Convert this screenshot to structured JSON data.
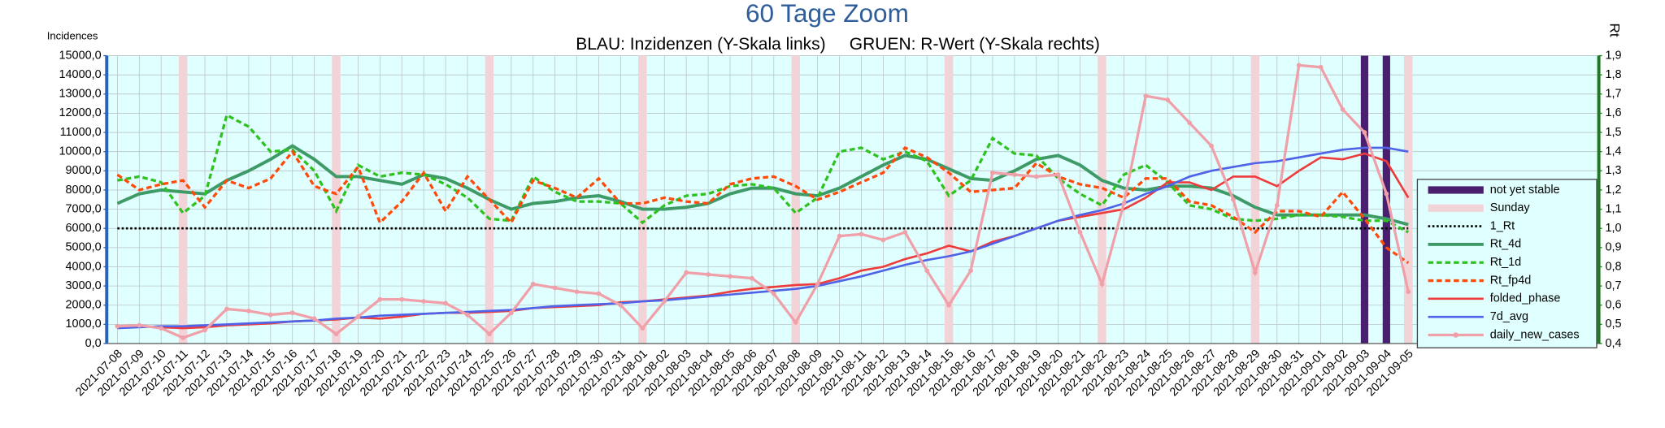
{
  "chart_data": {
    "type": "line",
    "title": "60 Tage Zoom",
    "subtitle": "BLAU: Inzidenzen (Y-Skala links)     GRUEN: R-Wert (Y-Skala rechts)",
    "y_label": "Incidences",
    "y2_label": "Rt",
    "grid": true,
    "legend": "right",
    "categories": [
      "2021-07-08",
      "2021-07-09",
      "2021-07-10",
      "2021-07-11",
      "2021-07-12",
      "2021-07-13",
      "2021-07-14",
      "2021-07-15",
      "2021-07-16",
      "2021-07-17",
      "2021-07-18",
      "2021-07-19",
      "2021-07-20",
      "2021-07-21",
      "2021-07-22",
      "2021-07-23",
      "2021-07-24",
      "2021-07-25",
      "2021-07-26",
      "2021-07-27",
      "2021-07-28",
      "2021-07-29",
      "2021-07-30",
      "2021-07-31",
      "2021-08-01",
      "2021-08-02",
      "2021-08-03",
      "2021-08-04",
      "2021-08-05",
      "2021-08-06",
      "2021-08-07",
      "2021-08-08",
      "2021-08-09",
      "2021-08-10",
      "2021-08-11",
      "2021-08-12",
      "2021-08-13",
      "2021-08-14",
      "2021-08-15",
      "2021-08-16",
      "2021-08-17",
      "2021-08-18",
      "2021-08-19",
      "2021-08-20",
      "2021-08-21",
      "2021-08-22",
      "2021-08-23",
      "2021-08-24",
      "2021-08-25",
      "2021-08-26",
      "2021-08-27",
      "2021-08-28",
      "2021-08-29",
      "2021-08-30",
      "2021-08-31",
      "2021-09-01",
      "2021-09-02",
      "2021-09-03",
      "2021-09-04",
      "2021-09-05"
    ],
    "ylim": [
      0,
      15000
    ],
    "yticks": [
      {
        "value": 0,
        "label": "0,0"
      },
      {
        "value": 1000,
        "label": "1000,0"
      },
      {
        "value": 2000,
        "label": "2000,0"
      },
      {
        "value": 3000,
        "label": "3000,0"
      },
      {
        "value": 4000,
        "label": "4000,0"
      },
      {
        "value": 5000,
        "label": "5000,0"
      },
      {
        "value": 6000,
        "label": "6000,0"
      },
      {
        "value": 7000,
        "label": "7000,0"
      },
      {
        "value": 8000,
        "label": "8000,0"
      },
      {
        "value": 9000,
        "label": "9000,0"
      },
      {
        "value": 10000,
        "label": "10000,0"
      },
      {
        "value": 11000,
        "label": "11000,0"
      },
      {
        "value": 12000,
        "label": "12000,0"
      },
      {
        "value": 13000,
        "label": "13000,0"
      },
      {
        "value": 14000,
        "label": "14000,0"
      },
      {
        "value": 15000,
        "label": "15000,0"
      }
    ],
    "y2lim": [
      0.4,
      1.9
    ],
    "y2ticks": [
      {
        "value": 0.4,
        "label": "0,4"
      },
      {
        "value": 0.5,
        "label": "0,5"
      },
      {
        "value": 0.6,
        "label": "0,6"
      },
      {
        "value": 0.7,
        "label": "0,7"
      },
      {
        "value": 0.8,
        "label": "0,8"
      },
      {
        "value": 0.9,
        "label": "0,9"
      },
      {
        "value": 1.0,
        "label": "1,0"
      },
      {
        "value": 1.1,
        "label": "1,1"
      },
      {
        "value": 1.2,
        "label": "1,2"
      },
      {
        "value": 1.3,
        "label": "1,3"
      },
      {
        "value": 1.4,
        "label": "1,4"
      },
      {
        "value": 1.5,
        "label": "1,5"
      },
      {
        "value": 1.6,
        "label": "1,6"
      },
      {
        "value": 1.7,
        "label": "1,7"
      },
      {
        "value": 1.8,
        "label": "1,8"
      },
      {
        "value": 1.9,
        "label": "1,9"
      }
    ],
    "series": [
      {
        "name": "not yet stable",
        "type": "band",
        "color": "#4b1f6f",
        "values": [
          null,
          null,
          null,
          null,
          null,
          null,
          null,
          null,
          null,
          null,
          null,
          null,
          null,
          null,
          null,
          null,
          null,
          null,
          null,
          null,
          null,
          null,
          null,
          null,
          null,
          null,
          null,
          null,
          null,
          null,
          null,
          null,
          null,
          null,
          null,
          null,
          null,
          null,
          null,
          null,
          null,
          null,
          null,
          null,
          null,
          null,
          null,
          null,
          null,
          null,
          null,
          null,
          null,
          null,
          null,
          null,
          null,
          15000,
          15000,
          15000
        ]
      },
      {
        "name": "Sunday",
        "type": "band",
        "color": "#f2d4d8",
        "values": [
          null,
          null,
          null,
          15000,
          null,
          null,
          null,
          null,
          null,
          null,
          15000,
          null,
          null,
          null,
          null,
          null,
          null,
          15000,
          null,
          null,
          null,
          null,
          null,
          null,
          15000,
          null,
          null,
          null,
          null,
          null,
          null,
          15000,
          null,
          null,
          null,
          null,
          null,
          null,
          15000,
          null,
          null,
          null,
          null,
          null,
          null,
          15000,
          null,
          null,
          null,
          null,
          null,
          null,
          15000,
          null,
          null,
          null,
          null,
          null,
          null,
          15000
        ]
      },
      {
        "name": "1_Rt",
        "axis": "y2",
        "color": "#000000",
        "style": "dotted",
        "width": 2,
        "values": [
          1,
          1,
          1,
          1,
          1,
          1,
          1,
          1,
          1,
          1,
          1,
          1,
          1,
          1,
          1,
          1,
          1,
          1,
          1,
          1,
          1,
          1,
          1,
          1,
          1,
          1,
          1,
          1,
          1,
          1,
          1,
          1,
          1,
          1,
          1,
          1,
          1,
          1,
          1,
          1,
          1,
          1,
          1,
          1,
          1,
          1,
          1,
          1,
          1,
          1,
          1,
          1,
          1,
          1,
          1,
          1,
          1,
          1,
          1,
          1
        ]
      },
      {
        "name": "Rt_4d",
        "axis": "y2",
        "color": "#3e9a67",
        "style": "solid",
        "width": 3,
        "values": [
          1.13,
          1.18,
          1.2,
          1.19,
          1.18,
          1.25,
          1.3,
          1.36,
          1.43,
          1.36,
          1.27,
          1.27,
          1.25,
          1.23,
          1.28,
          1.26,
          1.21,
          1.15,
          1.1,
          1.13,
          1.14,
          1.16,
          1.17,
          1.14,
          1.1,
          1.1,
          1.11,
          1.13,
          1.18,
          1.21,
          1.21,
          1.18,
          1.17,
          1.21,
          1.27,
          1.33,
          1.38,
          1.36,
          1.31,
          1.26,
          1.25,
          1.3,
          1.36,
          1.38,
          1.33,
          1.25,
          1.21,
          1.2,
          1.22,
          1.22,
          1.21,
          1.17,
          1.11,
          1.07,
          1.07,
          1.07,
          1.07,
          1.07,
          1.05,
          1.02
        ]
      },
      {
        "name": "Rt_1d",
        "axis": "y2",
        "color": "#2ec21f",
        "style": "dashed",
        "width": 2.5,
        "values": [
          1.25,
          1.27,
          1.24,
          1.08,
          1.17,
          1.59,
          1.53,
          1.4,
          1.41,
          1.3,
          1.09,
          1.33,
          1.27,
          1.29,
          1.28,
          1.23,
          1.16,
          1.05,
          1.04,
          1.27,
          1.19,
          1.14,
          1.14,
          1.13,
          1.03,
          1.12,
          1.17,
          1.18,
          1.22,
          1.23,
          1.21,
          1.08,
          1.16,
          1.4,
          1.42,
          1.36,
          1.4,
          1.35,
          1.17,
          1.25,
          1.47,
          1.39,
          1.38,
          1.26,
          1.18,
          1.12,
          1.28,
          1.33,
          1.24,
          1.12,
          1.1,
          1.05,
          1.04,
          1.05,
          1.07,
          1.07,
          1.06,
          1.04,
          1.04,
          0.98
        ]
      },
      {
        "name": "Rt_fp4d",
        "axis": "y2",
        "color": "#ff4a0a",
        "style": "dashed",
        "width": 2.5,
        "values": [
          1.28,
          1.2,
          1.23,
          1.25,
          1.11,
          1.25,
          1.21,
          1.26,
          1.4,
          1.22,
          1.18,
          1.32,
          1.03,
          1.14,
          1.29,
          1.09,
          1.27,
          1.15,
          1.03,
          1.25,
          1.21,
          1.16,
          1.26,
          1.13,
          1.13,
          1.16,
          1.14,
          1.13,
          1.23,
          1.26,
          1.27,
          1.22,
          1.15,
          1.19,
          1.24,
          1.29,
          1.42,
          1.37,
          1.29,
          1.19,
          1.2,
          1.21,
          1.34,
          1.27,
          1.23,
          1.21,
          1.16,
          1.26,
          1.26,
          1.14,
          1.12,
          1.06,
          0.98,
          1.09,
          1.09,
          1.06,
          1.19,
          1.05,
          0.9,
          0.82
        ]
      },
      {
        "name": "folded_phase",
        "color": "#ee3b3b",
        "style": "solid",
        "width": 2,
        "values": [
          850,
          900,
          850,
          800,
          850,
          950,
          1000,
          1050,
          1150,
          1200,
          1250,
          1350,
          1300,
          1400,
          1550,
          1600,
          1600,
          1650,
          1700,
          1850,
          1900,
          1950,
          2000,
          2150,
          2200,
          2300,
          2400,
          2500,
          2700,
          2850,
          2950,
          3050,
          3100,
          3400,
          3800,
          4000,
          4400,
          4700,
          5100,
          4800,
          5300,
          5600,
          6000,
          6400,
          6600,
          6800,
          7000,
          7600,
          8400,
          8400,
          8000,
          8700,
          8700,
          8200,
          9000,
          9700,
          9600,
          9900,
          9500,
          7600
        ]
      },
      {
        "name": "7d_avg",
        "color": "#4f63e8",
        "style": "solid",
        "width": 2,
        "values": [
          800,
          850,
          900,
          900,
          950,
          1000,
          1050,
          1100,
          1150,
          1200,
          1300,
          1350,
          1450,
          1500,
          1550,
          1600,
          1650,
          1700,
          1750,
          1850,
          1950,
          2000,
          2050,
          2100,
          2200,
          2250,
          2350,
          2450,
          2550,
          2650,
          2750,
          2850,
          3000,
          3250,
          3500,
          3800,
          4100,
          4350,
          4550,
          4800,
          5200,
          5600,
          6000,
          6400,
          6700,
          6950,
          7300,
          7800,
          8200,
          8700,
          9000,
          9200,
          9400,
          9500,
          9700,
          9900,
          10100,
          10200,
          10200,
          10000
        ]
      },
      {
        "name": "daily_new_cases",
        "color": "#f0a0a8",
        "style": "solid",
        "width": 2.5,
        "marker": "circle",
        "values": [
          900,
          950,
          800,
          300,
          700,
          1800,
          1700,
          1500,
          1600,
          1300,
          500,
          1400,
          2300,
          2300,
          2200,
          2100,
          1500,
          500,
          1600,
          3100,
          2900,
          2700,
          2600,
          2000,
          800,
          2200,
          3700,
          3600,
          3500,
          3400,
          2600,
          1100,
          3100,
          5600,
          5700,
          5400,
          5800,
          3800,
          2000,
          3800,
          8900,
          8800,
          8700,
          8800,
          5800,
          3100,
          7300,
          12900,
          12700,
          11500,
          10300,
          7500,
          3700,
          7200,
          14500,
          14400,
          12200,
          11000,
          7800,
          2700
        ]
      }
    ]
  }
}
